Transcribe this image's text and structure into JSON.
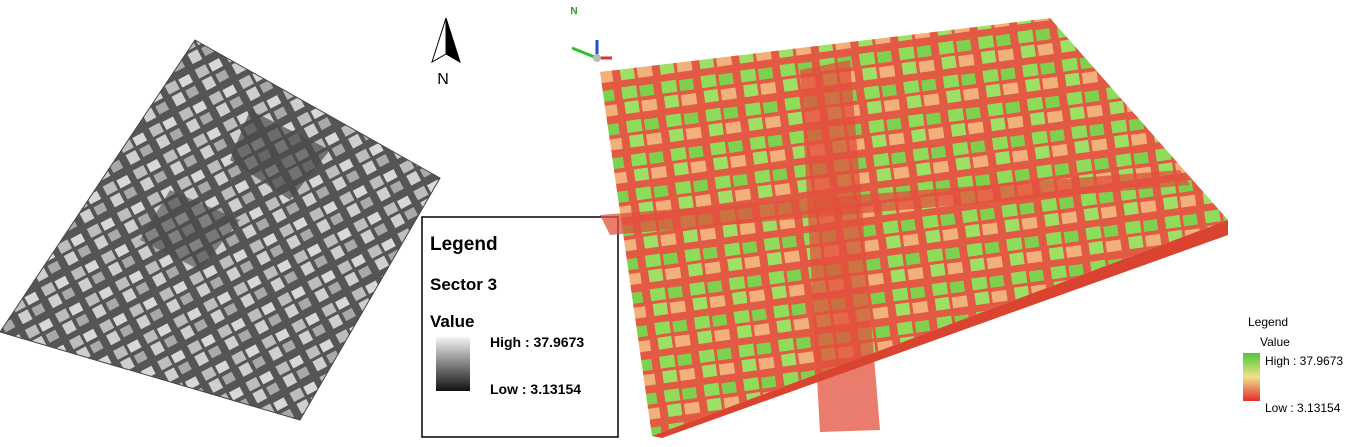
{
  "left_map": {
    "north_label": "N",
    "legend": {
      "title": "Legend",
      "layer": "Sector 3",
      "field": "Value",
      "high": "High : 37.9673",
      "low": "Low : 3.13154"
    }
  },
  "right_map": {
    "north_label": "N",
    "legend": {
      "title": "Legend",
      "field": "Value",
      "high": "High : 37.9673",
      "low": "Low : 3.13154"
    }
  }
}
